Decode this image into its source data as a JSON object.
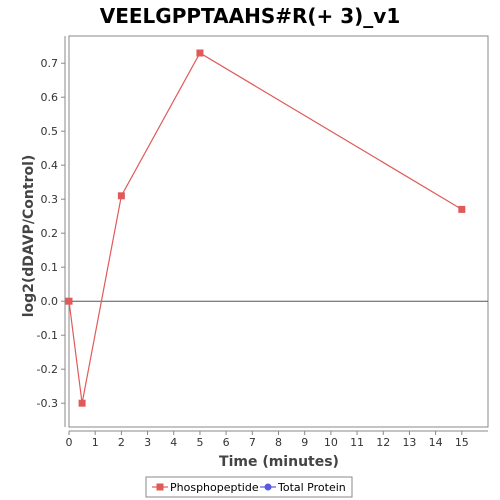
{
  "chart_data": {
    "type": "line",
    "title": "VEELGPPTAAHS#R(+ 3)_v1",
    "xlabel": "Time (minutes)",
    "ylabel": "log2(dDAVP/Control)",
    "xlim": [
      0,
      16
    ],
    "ylim": [
      -0.37,
      0.78
    ],
    "x_ticks": [
      "0",
      "1",
      "2",
      "3",
      "4",
      "5",
      "6",
      "7",
      "8",
      "9",
      "10",
      "11",
      "12",
      "13",
      "14",
      "15"
    ],
    "y_ticks": [
      "-0.3",
      "-0.2",
      "-0.1",
      "0.0",
      "0.1",
      "0.2",
      "0.3",
      "0.4",
      "0.5",
      "0.6",
      "0.7"
    ],
    "reference_line_y": 0.0,
    "legend_position": "bottom",
    "series": [
      {
        "name": "Phosphopeptide",
        "color": "#e05a5a",
        "marker": "square",
        "x": [
          0,
          0.5,
          2,
          5,
          15
        ],
        "y": [
          0.0,
          -0.3,
          0.31,
          0.73,
          0.27
        ]
      },
      {
        "name": "Total Protein",
        "color": "#5a5ae0",
        "marker": "circle",
        "x": [],
        "y": []
      }
    ]
  }
}
